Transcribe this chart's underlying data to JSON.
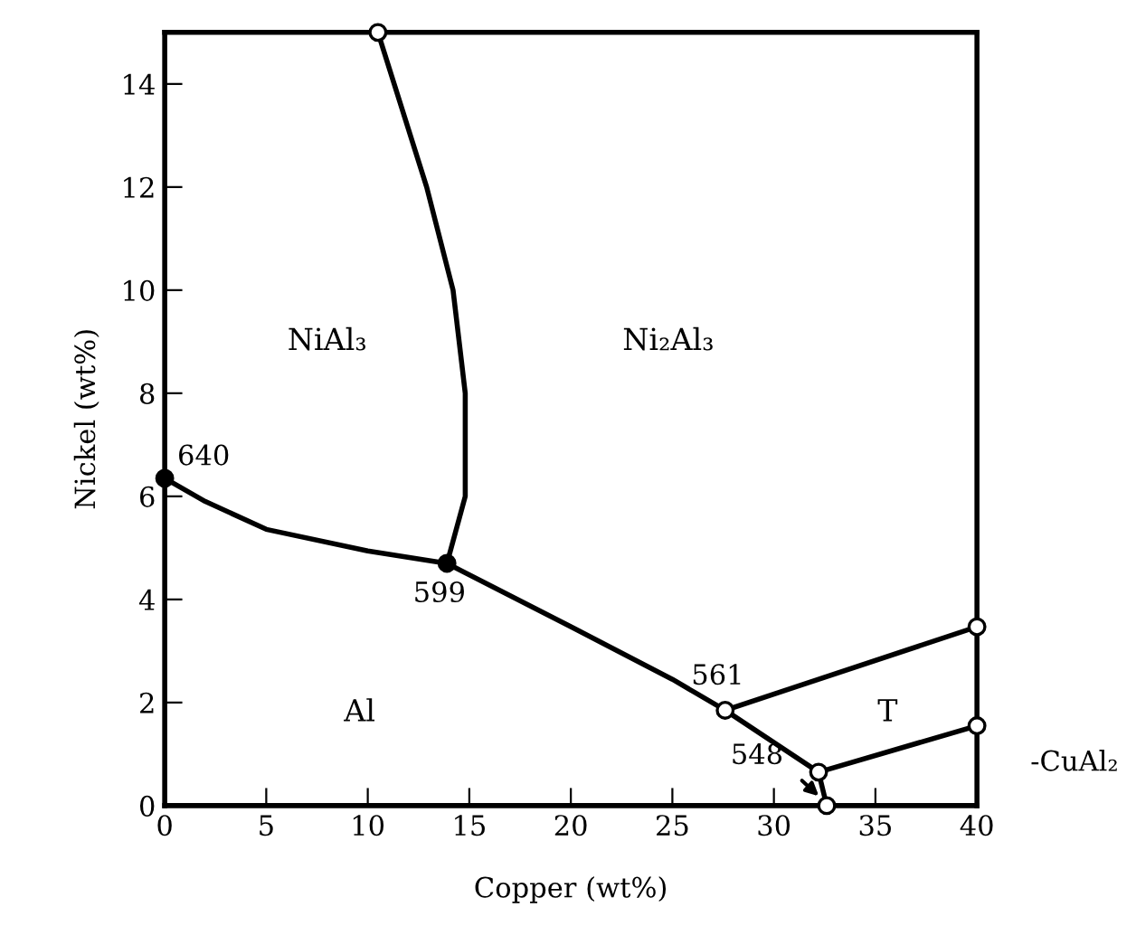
{
  "chart_data": {
    "type": "line",
    "xlabel": "Copper (wt%)",
    "ylabel": "Nickel (wt%)",
    "xlim": [
      0,
      40
    ],
    "ylim": [
      0,
      15
    ],
    "xticks": [
      0,
      5,
      10,
      15,
      20,
      25,
      30,
      35,
      40
    ],
    "yticks": [
      0,
      2,
      4,
      6,
      8,
      10,
      12,
      14
    ],
    "grid": false,
    "line_style": "solid",
    "series": [
      {
        "color": "#000000",
        "x": [
          0,
          2,
          5,
          10,
          13.9
        ],
        "values": [
          6.35,
          5.9,
          5.36,
          4.94,
          4.7
        ]
      },
      {
        "color": "#000000",
        "x": [
          10.5,
          12.9,
          14.2,
          14.8,
          14.8,
          13.9
        ],
        "values": [
          15,
          12,
          10,
          8,
          6,
          4.7
        ]
      },
      {
        "color": "#000000",
        "x": [
          13.9,
          20,
          25,
          27.6,
          32.2,
          32.6
        ],
        "values": [
          4.7,
          3.47,
          2.45,
          1.85,
          0.65,
          0
        ]
      },
      {
        "color": "#000000",
        "x": [
          27.6,
          40
        ],
        "values": [
          1.85,
          3.47
        ]
      },
      {
        "color": "#000000",
        "x": [
          32.2,
          40
        ],
        "values": [
          0.65,
          1.55
        ]
      },
      {
        "type": "scatter",
        "marker": "circle",
        "color": "#000000",
        "x": [
          0,
          13.9
        ],
        "values": [
          6.35,
          4.7
        ]
      },
      {
        "type": "scatter",
        "marker": "circle",
        "color": "#ffffff",
        "x": [
          10.5,
          27.6,
          32.2,
          32.6,
          40,
          40
        ],
        "values": [
          15,
          1.85,
          0.65,
          0,
          3.47,
          1.55
        ]
      }
    ],
    "annotations": [
      {
        "text": "640",
        "x": 0,
        "y": 6.35
      },
      {
        "text": "599",
        "x": 13.9,
        "y": 4.7
      },
      {
        "text": "561",
        "x": 27.6,
        "y": 1.85
      },
      {
        "text": "548",
        "x": 32.2,
        "y": 0.65
      },
      "NiAl₃",
      "Ni₂Al₃",
      "Al",
      "T",
      "-CuAl₂"
    ]
  }
}
